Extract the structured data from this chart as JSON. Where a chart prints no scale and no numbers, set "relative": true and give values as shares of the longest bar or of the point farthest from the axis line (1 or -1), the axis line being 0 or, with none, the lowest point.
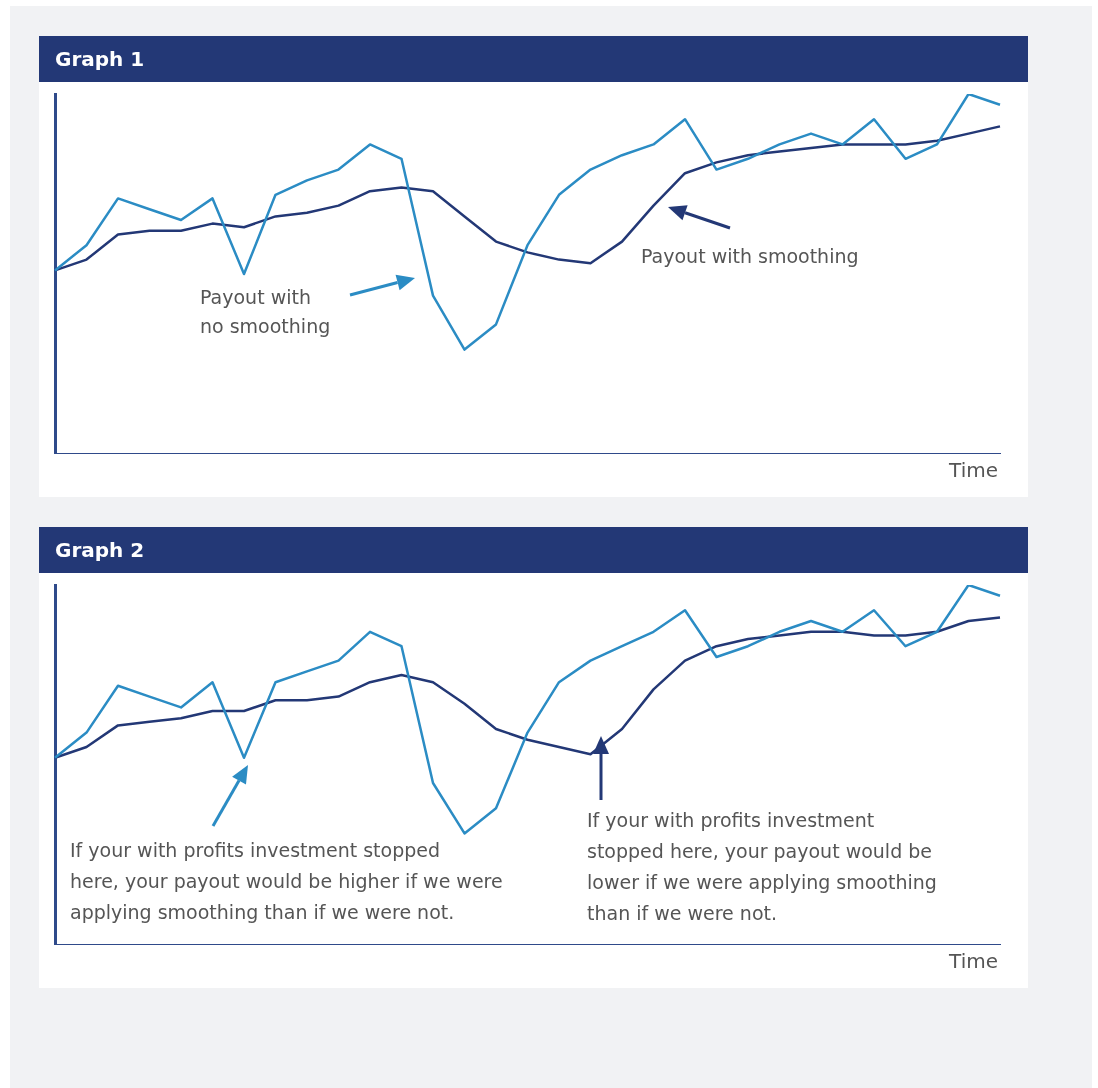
{
  "chart_data": [
    {
      "type": "line",
      "title": "Graph 1",
      "xlabel": "Time",
      "relative": true,
      "grid": false,
      "legend": false,
      "marker": "none",
      "line_style": "solid",
      "categories": [
        null,
        null,
        null,
        null,
        null,
        null,
        null,
        null,
        null,
        null,
        null,
        null,
        null,
        null,
        null,
        null,
        null,
        null,
        null,
        null,
        null,
        null,
        null,
        null,
        null,
        null,
        null,
        null,
        null,
        null,
        null
      ],
      "series": [
        {
          "color": "#2b8cc4",
          "values": [
            0.51,
            0.58,
            0.71,
            0.68,
            0.65,
            0.71,
            0.5,
            0.72,
            0.76,
            0.79,
            0.86,
            0.82,
            0.44,
            0.29,
            0.36,
            0.58,
            0.72,
            0.79,
            0.83,
            0.86,
            0.93,
            0.79,
            0.82,
            0.86,
            0.89,
            0.86,
            0.93,
            0.82,
            0.86,
            1,
            0.97
          ]
        },
        {
          "color": "#233876",
          "values": [
            0.51,
            0.54,
            0.61,
            0.62,
            0.62,
            0.64,
            0.63,
            0.66,
            0.67,
            0.69,
            0.73,
            0.74,
            0.73,
            0.66,
            0.59,
            0.56,
            0.54,
            0.53,
            0.59,
            0.69,
            0.78,
            0.81,
            0.83,
            0.84,
            0.85,
            0.86,
            0.86,
            0.86,
            0.87,
            0.89,
            0.91
          ]
        }
      ],
      "annotations": [
        "Payout with\nno smoothing",
        "Payout with smoothing"
      ]
    },
    {
      "type": "line",
      "title": "Graph 2",
      "xlabel": "Time",
      "relative": true,
      "grid": false,
      "legend": false,
      "marker": "none",
      "line_style": "solid",
      "categories": [
        null,
        null,
        null,
        null,
        null,
        null,
        null,
        null,
        null,
        null,
        null,
        null,
        null,
        null,
        null,
        null,
        null,
        null,
        null,
        null,
        null,
        null,
        null,
        null,
        null,
        null,
        null,
        null,
        null,
        null,
        null
      ],
      "series": [
        {
          "color": "#2b8cc4",
          "values": [
            0.52,
            0.59,
            0.72,
            0.69,
            0.66,
            0.73,
            0.52,
            0.73,
            0.76,
            0.79,
            0.87,
            0.83,
            0.45,
            0.31,
            0.38,
            0.59,
            0.73,
            0.79,
            0.83,
            0.87,
            0.93,
            0.8,
            0.83,
            0.87,
            0.9,
            0.87,
            0.93,
            0.83,
            0.87,
            1,
            0.97
          ]
        },
        {
          "color": "#233876",
          "values": [
            0.52,
            0.55,
            0.61,
            0.62,
            0.63,
            0.65,
            0.65,
            0.68,
            0.68,
            0.69,
            0.73,
            0.75,
            0.73,
            0.67,
            0.6,
            0.57,
            0.55,
            0.53,
            0.6,
            0.71,
            0.79,
            0.83,
            0.85,
            0.86,
            0.87,
            0.87,
            0.86,
            0.86,
            0.87,
            0.9,
            0.91
          ]
        }
      ],
      "annotations": [
        "If your with profits investment stopped\nhere, your payout would be higher if we were\napplying smoothing than if we were not.",
        "If your with profits investment\nstopped here, your payout would be\nlower if we were applying smoothing\nthan if we were not."
      ]
    }
  ]
}
